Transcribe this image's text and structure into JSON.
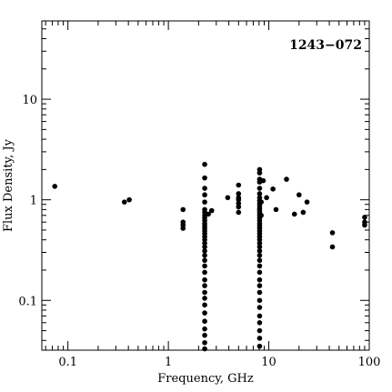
{
  "chart_data": {
    "type": "scatter",
    "title": "1243−072",
    "xlabel": "Frequency, GHz",
    "ylabel": "Flux Density, Jy",
    "xscale": "log",
    "yscale": "log",
    "xlim": [
      0.055,
      100
    ],
    "ylim": [
      0.032,
      60
    ],
    "grid": false,
    "x_ticks": [
      {
        "value": 0.1,
        "label": "0.1"
      },
      {
        "value": 1,
        "label": "1"
      },
      {
        "value": 10,
        "label": "10"
      },
      {
        "value": 100,
        "label": "100"
      }
    ],
    "y_ticks": [
      {
        "value": 0.1,
        "label": "0.1"
      },
      {
        "value": 1,
        "label": "1"
      },
      {
        "value": 10,
        "label": "10"
      }
    ],
    "series": [
      {
        "marker": "filled-circle",
        "color": "#000000",
        "points": [
          [
            0.074,
            1.36
          ],
          [
            0.365,
            0.95
          ],
          [
            0.408,
            1.0
          ],
          [
            1.4,
            0.8
          ],
          [
            1.4,
            0.6
          ],
          [
            1.4,
            0.56
          ],
          [
            1.4,
            0.52
          ],
          [
            2.3,
            2.25
          ],
          [
            2.3,
            1.65
          ],
          [
            2.3,
            1.3
          ],
          [
            2.3,
            1.12
          ],
          [
            2.3,
            0.95
          ],
          [
            2.3,
            0.8
          ],
          [
            2.3,
            0.75
          ],
          [
            2.3,
            0.7
          ],
          [
            2.3,
            0.66
          ],
          [
            2.3,
            0.62
          ],
          [
            2.3,
            0.58
          ],
          [
            2.3,
            0.55
          ],
          [
            2.3,
            0.52
          ],
          [
            2.3,
            0.49
          ],
          [
            2.3,
            0.46
          ],
          [
            2.3,
            0.43
          ],
          [
            2.3,
            0.4
          ],
          [
            2.3,
            0.37
          ],
          [
            2.3,
            0.34
          ],
          [
            2.3,
            0.31
          ],
          [
            2.3,
            0.28
          ],
          [
            2.3,
            0.25
          ],
          [
            2.3,
            0.22
          ],
          [
            2.3,
            0.19
          ],
          [
            2.3,
            0.16
          ],
          [
            2.3,
            0.14
          ],
          [
            2.3,
            0.12
          ],
          [
            2.3,
            0.105
          ],
          [
            2.3,
            0.09
          ],
          [
            2.3,
            0.075
          ],
          [
            2.3,
            0.062
          ],
          [
            2.3,
            0.052
          ],
          [
            2.3,
            0.045
          ],
          [
            2.3,
            0.038
          ],
          [
            2.3,
            0.033
          ],
          [
            2.5,
            0.72
          ],
          [
            2.7,
            0.78
          ],
          [
            3.9,
            1.05
          ],
          [
            5.0,
            1.4
          ],
          [
            5.0,
            1.15
          ],
          [
            5.0,
            1.05
          ],
          [
            5.0,
            1.0
          ],
          [
            5.0,
            0.92
          ],
          [
            5.0,
            0.85
          ],
          [
            5.0,
            0.75
          ],
          [
            8.1,
            2.0
          ],
          [
            8.1,
            1.85
          ],
          [
            8.1,
            1.6
          ],
          [
            8.1,
            1.5
          ],
          [
            8.1,
            1.3
          ],
          [
            8.1,
            1.15
          ],
          [
            8.1,
            1.05
          ],
          [
            8.1,
            0.98
          ],
          [
            8.1,
            0.92
          ],
          [
            8.1,
            0.87
          ],
          [
            8.1,
            0.82
          ],
          [
            8.1,
            0.78
          ],
          [
            8.1,
            0.74
          ],
          [
            8.1,
            0.7
          ],
          [
            8.1,
            0.66
          ],
          [
            8.1,
            0.62
          ],
          [
            8.1,
            0.58
          ],
          [
            8.1,
            0.55
          ],
          [
            8.1,
            0.52
          ],
          [
            8.1,
            0.49
          ],
          [
            8.1,
            0.46
          ],
          [
            8.1,
            0.43
          ],
          [
            8.1,
            0.4
          ],
          [
            8.1,
            0.37
          ],
          [
            8.1,
            0.34
          ],
          [
            8.1,
            0.31
          ],
          [
            8.1,
            0.28
          ],
          [
            8.1,
            0.25
          ],
          [
            8.1,
            0.22
          ],
          [
            8.1,
            0.19
          ],
          [
            8.1,
            0.16
          ],
          [
            8.1,
            0.14
          ],
          [
            8.1,
            0.12
          ],
          [
            8.1,
            0.1
          ],
          [
            8.1,
            0.085
          ],
          [
            8.1,
            0.07
          ],
          [
            8.1,
            0.06
          ],
          [
            8.1,
            0.05
          ],
          [
            8.1,
            0.042
          ],
          [
            8.1,
            0.035
          ],
          [
            8.4,
            0.95
          ],
          [
            8.4,
            0.7
          ],
          [
            8.8,
            1.55
          ],
          [
            9.5,
            1.05
          ],
          [
            11.0,
            1.28
          ],
          [
            11.8,
            0.8
          ],
          [
            15.0,
            1.6
          ],
          [
            18.0,
            0.72
          ],
          [
            20.0,
            1.12
          ],
          [
            22.0,
            0.75
          ],
          [
            24.0,
            0.95
          ],
          [
            43.0,
            0.47
          ],
          [
            43.0,
            0.34
          ],
          [
            90.0,
            0.67
          ],
          [
            90.0,
            0.6
          ],
          [
            90.0,
            0.56
          ]
        ]
      }
    ]
  }
}
